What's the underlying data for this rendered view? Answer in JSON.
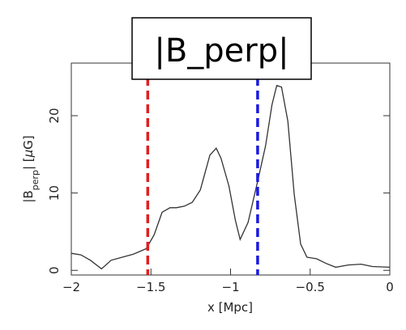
{
  "chart_data": {
    "type": "line",
    "title": "|B_perp|",
    "ylabel": [
      "|B",
      "perp",
      "| [",
      "μ",
      "G]"
    ],
    "xlabel": "x [Mpc]",
    "xlim": [
      -2,
      0
    ],
    "ylim": [
      -0.6,
      26.8
    ],
    "xticks": [
      {
        "value": -2,
        "label": "−2"
      },
      {
        "value": -1.5,
        "label": "−1.5"
      },
      {
        "value": -1,
        "label": "−1"
      },
      {
        "value": -0.5,
        "label": "−0.5"
      },
      0
    ],
    "yticks": [
      0,
      10,
      20
    ],
    "series": [
      {
        "color": "#333333",
        "x": [
          -2,
          -1.94,
          -1.88,
          -1.81,
          -1.75,
          -1.68,
          -1.61,
          -1.53,
          -1.48,
          -1.43,
          -1.38,
          -1.34,
          -1.29,
          -1.24,
          -1.19,
          -1.13,
          -1.09,
          -1.06,
          -1.01,
          -0.97,
          -0.94,
          -0.89,
          -0.83,
          -0.78,
          -0.74,
          -0.71,
          -0.68,
          -0.64,
          -0.6,
          -0.56,
          -0.52,
          -0.46,
          -0.4,
          -0.34,
          -0.26,
          -0.18,
          -0.11,
          0
        ],
        "values": [
          2.2,
          2.0,
          1.3,
          0.2,
          1.3,
          1.7,
          2.1,
          2.8,
          4.6,
          7.5,
          8.1,
          8.1,
          8.3,
          8.8,
          10.4,
          14.9,
          15.8,
          14.5,
          10.9,
          6.5,
          4.0,
          6.2,
          11.5,
          16.1,
          21.4,
          23.9,
          23.7,
          19.3,
          9.8,
          3.4,
          1.7,
          1.5,
          0.9,
          0.4,
          0.7,
          0.8,
          0.5,
          0.4
        ]
      }
    ],
    "vlines": [
      {
        "x": -1.52,
        "color": "#e02020"
      },
      {
        "x": -0.83,
        "color": "#1a1ae0"
      }
    ]
  }
}
